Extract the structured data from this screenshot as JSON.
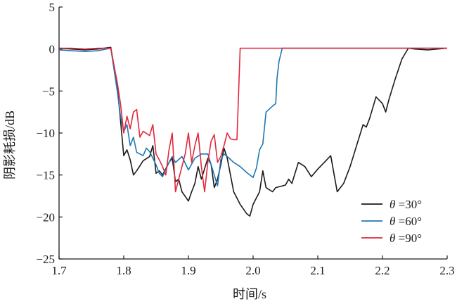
{
  "chart_data": {
    "type": "line",
    "xlabel": "时间/s",
    "ylabel": "阴影耗损/dB",
    "xlim": [
      1.7,
      2.3
    ],
    "ylim": [
      -25,
      5
    ],
    "xticks": [
      1.7,
      1.8,
      1.9,
      2.0,
      2.1,
      2.2,
      2.3
    ],
    "xtick_labels": [
      "1.7",
      "1.8",
      "1.9",
      "2.0",
      "2.1",
      "2.2",
      "2.3"
    ],
    "yticks": [
      5,
      0,
      -5,
      -10,
      -15,
      -20,
      -25
    ],
    "ytick_labels": [
      "5",
      "0",
      "−5",
      "−10",
      "−15",
      "−20",
      "−25"
    ],
    "grid": false,
    "legend": {
      "placement": "bottom-right",
      "symbol": "θ",
      "entries": [
        "=30°",
        "=60°",
        "=90°"
      ]
    },
    "series": [
      {
        "name": "θ =30°",
        "color": "#1a1a1a",
        "points": [
          [
            1.7,
            0.1
          ],
          [
            1.72,
            0.0
          ],
          [
            1.74,
            -0.1
          ],
          [
            1.76,
            0.0
          ],
          [
            1.78,
            0.2
          ],
          [
            1.79,
            -4.5
          ],
          [
            1.795,
            -8.5
          ],
          [
            1.8,
            -12.7
          ],
          [
            1.805,
            -12.0
          ],
          [
            1.81,
            -13.2
          ],
          [
            1.815,
            -15.0
          ],
          [
            1.82,
            -14.5
          ],
          [
            1.83,
            -13.3
          ],
          [
            1.84,
            -12.8
          ],
          [
            1.845,
            -11.5
          ],
          [
            1.85,
            -14.8
          ],
          [
            1.855,
            -14.5
          ],
          [
            1.86,
            -15.0
          ],
          [
            1.87,
            -13.5
          ],
          [
            1.875,
            -13.0
          ],
          [
            1.88,
            -15.8
          ],
          [
            1.885,
            -15.5
          ],
          [
            1.89,
            -17.0
          ],
          [
            1.9,
            -18.1
          ],
          [
            1.905,
            -17.0
          ],
          [
            1.91,
            -16.0
          ],
          [
            1.915,
            -14.0
          ],
          [
            1.92,
            -15.5
          ],
          [
            1.93,
            -13.0
          ],
          [
            1.935,
            -13.7
          ],
          [
            1.94,
            -16.5
          ],
          [
            1.945,
            -15.5
          ],
          [
            1.95,
            -13.8
          ],
          [
            1.955,
            -11.8
          ],
          [
            1.96,
            -13.0
          ],
          [
            1.965,
            -15.0
          ],
          [
            1.97,
            -17.0
          ],
          [
            1.98,
            -18.5
          ],
          [
            1.99,
            -19.6
          ],
          [
            1.995,
            -19.9
          ],
          [
            2.0,
            -18.5
          ],
          [
            2.01,
            -17.0
          ],
          [
            2.015,
            -14.5
          ],
          [
            2.02,
            -16.5
          ],
          [
            2.03,
            -17.0
          ],
          [
            2.035,
            -16.5
          ],
          [
            2.05,
            -16.2
          ],
          [
            2.055,
            -15.5
          ],
          [
            2.06,
            -16.0
          ],
          [
            2.07,
            -13.5
          ],
          [
            2.08,
            -14.0
          ],
          [
            2.09,
            -15.2
          ],
          [
            2.1,
            -14.3
          ],
          [
            2.11,
            -13.5
          ],
          [
            2.12,
            -12.7
          ],
          [
            2.13,
            -17.0
          ],
          [
            2.14,
            -16.0
          ],
          [
            2.15,
            -14.0
          ],
          [
            2.16,
            -11.5
          ],
          [
            2.17,
            -9.0
          ],
          [
            2.175,
            -9.3
          ],
          [
            2.18,
            -8.3
          ],
          [
            2.19,
            -5.7
          ],
          [
            2.2,
            -6.5
          ],
          [
            2.205,
            -7.5
          ],
          [
            2.21,
            -6.0
          ],
          [
            2.22,
            -3.5
          ],
          [
            2.23,
            -1.2
          ],
          [
            2.24,
            0.1
          ],
          [
            2.25,
            0.0
          ],
          [
            2.27,
            -0.1
          ],
          [
            2.3,
            0.1
          ]
        ]
      },
      {
        "name": "θ =60°",
        "color": "#1f77b4",
        "points": [
          [
            1.7,
            -0.1
          ],
          [
            1.72,
            -0.2
          ],
          [
            1.74,
            -0.3
          ],
          [
            1.76,
            -0.2
          ],
          [
            1.78,
            0.1
          ],
          [
            1.79,
            -5.0
          ],
          [
            1.795,
            -8.0
          ],
          [
            1.8,
            -9.8
          ],
          [
            1.805,
            -9.0
          ],
          [
            1.81,
            -11.5
          ],
          [
            1.815,
            -10.5
          ],
          [
            1.82,
            -12.3
          ],
          [
            1.83,
            -12.7
          ],
          [
            1.835,
            -11.8
          ],
          [
            1.84,
            -12.2
          ],
          [
            1.85,
            -13.8
          ],
          [
            1.855,
            -14.8
          ],
          [
            1.86,
            -15.2
          ],
          [
            1.87,
            -13.5
          ],
          [
            1.875,
            -12.8
          ],
          [
            1.88,
            -13.5
          ],
          [
            1.89,
            -12.8
          ],
          [
            1.9,
            -14.4
          ],
          [
            1.91,
            -13.0
          ],
          [
            1.92,
            -12.5
          ],
          [
            1.93,
            -12.5
          ],
          [
            1.94,
            -15.0
          ],
          [
            1.945,
            -16.3
          ],
          [
            1.95,
            -13.2
          ],
          [
            1.955,
            -12.5
          ],
          [
            1.96,
            -12.8
          ],
          [
            1.97,
            -13.5
          ],
          [
            1.98,
            -14.0
          ],
          [
            1.99,
            -14.7
          ],
          [
            2.0,
            -15.3
          ],
          [
            2.005,
            -14.2
          ],
          [
            2.01,
            -12.0
          ],
          [
            2.015,
            -11.3
          ],
          [
            2.02,
            -7.5
          ],
          [
            2.03,
            -6.8
          ],
          [
            2.035,
            -6.5
          ],
          [
            2.037,
            -3.5
          ],
          [
            2.04,
            -1.5
          ],
          [
            2.045,
            0.1
          ],
          [
            2.1,
            0.1
          ],
          [
            2.2,
            0.1
          ],
          [
            2.3,
            0.1
          ]
        ]
      },
      {
        "name": "θ =90°",
        "color": "#e3283c",
        "points": [
          [
            1.7,
            0.1
          ],
          [
            1.72,
            0.1
          ],
          [
            1.74,
            0.0
          ],
          [
            1.76,
            0.1
          ],
          [
            1.78,
            0.1
          ],
          [
            1.79,
            -4.0
          ],
          [
            1.795,
            -6.5
          ],
          [
            1.8,
            -10.0
          ],
          [
            1.805,
            -8.0
          ],
          [
            1.81,
            -9.5
          ],
          [
            1.815,
            -7.5
          ],
          [
            1.82,
            -7.2
          ],
          [
            1.825,
            -10.5
          ],
          [
            1.83,
            -9.8
          ],
          [
            1.84,
            -10.3
          ],
          [
            1.845,
            -9.0
          ],
          [
            1.85,
            -12.5
          ],
          [
            1.855,
            -13.2
          ],
          [
            1.86,
            -14.0
          ],
          [
            1.865,
            -15.0
          ],
          [
            1.87,
            -12.0
          ],
          [
            1.875,
            -10.0
          ],
          [
            1.88,
            -17.0
          ],
          [
            1.885,
            -15.5
          ],
          [
            1.89,
            -14.0
          ],
          [
            1.895,
            -12.5
          ],
          [
            1.9,
            -10.0
          ],
          [
            1.905,
            -13.5
          ],
          [
            1.91,
            -11.5
          ],
          [
            1.915,
            -10.0
          ],
          [
            1.92,
            -14.0
          ],
          [
            1.925,
            -17.0
          ],
          [
            1.93,
            -13.5
          ],
          [
            1.935,
            -11.0
          ],
          [
            1.94,
            -10.2
          ],
          [
            1.945,
            -13.5
          ],
          [
            1.95,
            -12.8
          ],
          [
            1.955,
            -11.5
          ],
          [
            1.96,
            -10.0
          ],
          [
            1.965,
            -10.7
          ],
          [
            1.97,
            -10.8
          ],
          [
            1.975,
            -10.8
          ],
          [
            1.98,
            0.1
          ],
          [
            2.0,
            0.1
          ],
          [
            2.1,
            0.1
          ],
          [
            2.2,
            0.1
          ],
          [
            2.3,
            0.1
          ]
        ]
      }
    ]
  }
}
